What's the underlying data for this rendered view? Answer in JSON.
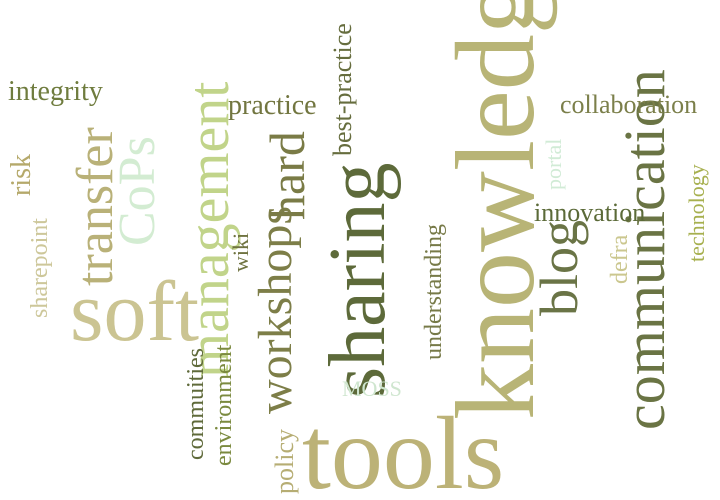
{
  "words": {
    "knowledge": "knowledge",
    "sharing": "sharing",
    "tools": "tools",
    "soft": "soft",
    "communication": "communication",
    "management": "management",
    "workshops": "workshops",
    "hard": "hard",
    "transfer": "transfer",
    "cops": "CoPs",
    "blog": "blog",
    "collaboration": "collaboration",
    "practice": "practice",
    "best_practice": "best-practice",
    "integrity": "integrity",
    "risk": "risk",
    "sharepoint": "sharepoint",
    "innovation": "innovation",
    "technology": "technology",
    "portal": "portal",
    "defra": "defra",
    "understanding": "understanding",
    "wiki": "wiki",
    "moss": "MOSS",
    "policy": "policy",
    "environment": "environment",
    "commuities": "commuities"
  }
}
